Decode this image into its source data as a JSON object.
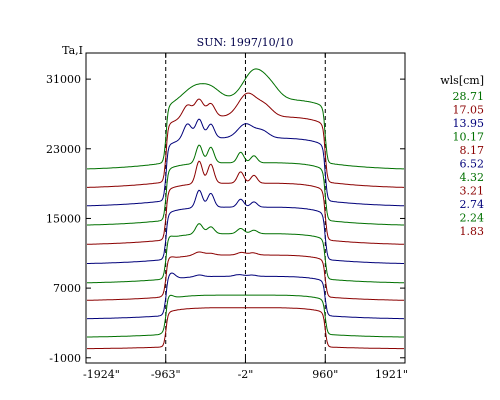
{
  "chart_data": {
    "type": "line",
    "title": "SUN: 1997/10/10",
    "ylabel": "Ta,I",
    "xlim": [
      -1924,
      1921
    ],
    "ylim": [
      -1600,
      34000
    ],
    "x_tick_labels": [
      "-1924\"",
      "-963\"",
      "-2\"",
      "960\"",
      "1921\""
    ],
    "x_tick_values": [
      -1924,
      -963,
      -2,
      960,
      1921
    ],
    "y_ticks": [
      -1000,
      7000,
      15000,
      23000,
      31000
    ],
    "y_tick_labels": [
      "-1000",
      "7000",
      "15000",
      "23000",
      "31000"
    ],
    "vlines": [
      -963,
      -2,
      960
    ],
    "legend_title": "wls[cm]",
    "legend_position": "right",
    "series": [
      {
        "name": "1.83",
        "color": "#8b0000",
        "base": 0,
        "disk": 4500,
        "outer": 250,
        "bumps": []
      },
      {
        "name": "2.24",
        "color": "#007000",
        "base": 1300,
        "disk": 4500,
        "outer": 400,
        "bumps": [
          [
            -930,
            70,
            500
          ]
        ]
      },
      {
        "name": "2.74",
        "color": "#00007a",
        "base": 3400,
        "disk": 4500,
        "outer": 450,
        "bumps": [
          [
            -900,
            70,
            800
          ],
          [
            -560,
            70,
            200
          ],
          [
            -80,
            80,
            200
          ],
          [
            80,
            70,
            150
          ]
        ]
      },
      {
        "name": "3.21",
        "color": "#8b0000",
        "base": 5500,
        "disk": 4800,
        "outer": 500,
        "bumps": [
          [
            -930,
            70,
            300
          ],
          [
            -560,
            80,
            400
          ],
          [
            -420,
            70,
            200
          ],
          [
            -50,
            70,
            300
          ],
          [
            90,
            70,
            250
          ]
        ]
      },
      {
        "name": "4.32",
        "color": "#007000",
        "base": 7500,
        "disk": 5200,
        "outer": 550,
        "bumps": [
          [
            -930,
            60,
            300
          ],
          [
            -560,
            60,
            1200
          ],
          [
            -420,
            60,
            800
          ],
          [
            -60,
            60,
            600
          ],
          [
            100,
            60,
            400
          ]
        ]
      },
      {
        "name": "6.52",
        "color": "#00007a",
        "base": 9700,
        "disk": 6000,
        "outer": 600,
        "bumps": [
          [
            -560,
            55,
            2000
          ],
          [
            -420,
            55,
            1600
          ],
          [
            -60,
            55,
            900
          ],
          [
            100,
            55,
            600
          ]
        ]
      },
      {
        "name": "8.17",
        "color": "#8b0000",
        "base": 11900,
        "disk": 6500,
        "outer": 650,
        "bumps": [
          [
            -560,
            55,
            2600
          ],
          [
            -420,
            55,
            2200
          ],
          [
            -60,
            55,
            1300
          ],
          [
            100,
            55,
            900
          ]
        ]
      },
      {
        "name": "10.17",
        "color": "#007000",
        "base": 14100,
        "disk": 6600,
        "outer": 700,
        "bumps": [
          [
            -560,
            55,
            2100
          ],
          [
            -420,
            55,
            1800
          ],
          [
            -60,
            55,
            1200
          ],
          [
            100,
            55,
            800
          ]
        ]
      },
      {
        "name": "13.95",
        "color": "#00007a",
        "base": 16300,
        "disk": 7200,
        "outer": 750,
        "bumps": [
          [
            -700,
            70,
            1800
          ],
          [
            -560,
            60,
            2200
          ],
          [
            -420,
            60,
            1600
          ],
          [
            0,
            130,
            1600
          ],
          [
            200,
            110,
            800
          ]
        ]
      },
      {
        "name": "17.05",
        "color": "#8b0000",
        "base": 18400,
        "disk": 7500,
        "outer": 800,
        "bumps": [
          [
            -700,
            80,
            1500
          ],
          [
            -560,
            70,
            2000
          ],
          [
            -420,
            70,
            1500
          ],
          [
            20,
            150,
            2600
          ],
          [
            230,
            130,
            1200
          ]
        ]
      },
      {
        "name": "28.71",
        "color": "#007000",
        "base": 20500,
        "disk": 7300,
        "outer": 900,
        "bumps": [
          [
            -600,
            200,
            1600
          ],
          [
            -400,
            150,
            900
          ],
          [
            100,
            180,
            3200
          ],
          [
            300,
            150,
            1300
          ]
        ]
      }
    ]
  }
}
